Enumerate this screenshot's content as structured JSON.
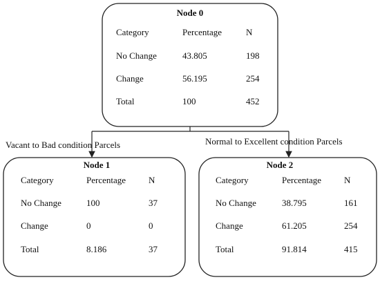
{
  "nodes": [
    {
      "title": "Node 0",
      "header": [
        "Category",
        "Percentage",
        "N"
      ],
      "rows": [
        [
          "No Change",
          "43.805",
          "198"
        ],
        [
          "Change",
          "56.195",
          "254"
        ],
        [
          "Total",
          "100",
          "452"
        ]
      ]
    },
    {
      "title": "Node 1",
      "header": [
        "Category",
        "Percentage",
        "N"
      ],
      "rows": [
        [
          "No Change",
          "100",
          "37"
        ],
        [
          "Change",
          "0",
          "0"
        ],
        [
          "Total",
          "8.186",
          "37"
        ]
      ]
    },
    {
      "title": "Node 2",
      "header": [
        "Category",
        "Percentage",
        "N"
      ],
      "rows": [
        [
          "No Change",
          "38.795",
          "161"
        ],
        [
          "Change",
          "61.205",
          "254"
        ],
        [
          "Total",
          "91.814",
          "415"
        ]
      ]
    }
  ],
  "edges": [
    {
      "label": "Vacant to Bad condition Parcels"
    },
    {
      "label": "Normal to Excellent condition Parcels"
    }
  ]
}
